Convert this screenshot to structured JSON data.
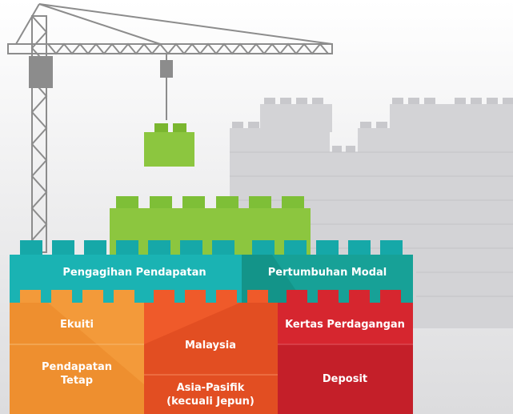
{
  "blocks": {
    "top": [
      {
        "label": [
          "Pengagihan Pendapatan"
        ]
      },
      {
        "label": [
          "Pertumbuhan Modal"
        ]
      }
    ],
    "bottom": [
      {
        "label": [
          "Ekuiti"
        ]
      },
      {
        "label": [
          "Pendapatan",
          "Tetap"
        ]
      },
      {
        "label": [
          "Malaysia"
        ]
      },
      {
        "label": [
          "Asia-Pasifik",
          "(kecuali Jepun)"
        ]
      },
      {
        "label": [
          "Kertas Perdagangan"
        ]
      },
      {
        "label": [
          "Deposit"
        ]
      }
    ]
  }
}
